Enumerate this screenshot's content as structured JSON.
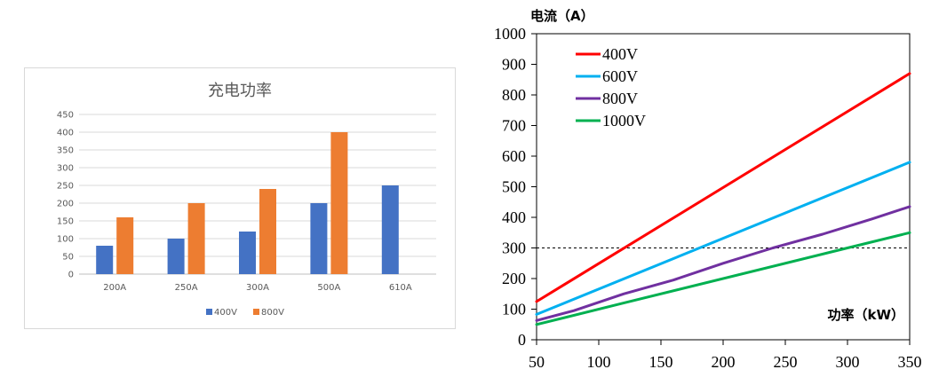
{
  "chart_data": [
    {
      "type": "bar",
      "title": "充电功率",
      "categories": [
        "200A",
        "250A",
        "300A",
        "500A",
        "610A"
      ],
      "series": [
        {
          "name": "400V",
          "color": "#4472c4",
          "values": [
            80,
            100,
            120,
            200,
            250
          ]
        },
        {
          "name": "800V",
          "color": "#ed7d31",
          "values": [
            160,
            200,
            240,
            400,
            null
          ]
        }
      ],
      "ylim": [
        0,
        450
      ],
      "yticks": [
        0,
        50,
        100,
        150,
        200,
        250,
        300,
        350,
        400,
        450
      ],
      "xlabel": "",
      "ylabel": "",
      "grid": true,
      "legend": "bottom"
    },
    {
      "type": "line",
      "xlabel": "功率（kW）",
      "ylabel": "电流（A）",
      "xlim": [
        50,
        350
      ],
      "ylim": [
        0,
        1000
      ],
      "xticks": [
        50,
        100,
        150,
        200,
        250,
        300,
        350
      ],
      "yticks": [
        0,
        100,
        200,
        300,
        400,
        500,
        600,
        700,
        800,
        900,
        1000
      ],
      "series": [
        {
          "name": "400V",
          "color": "#ff0000",
          "x": [
            50,
            350
          ],
          "y": [
            125,
            870
          ]
        },
        {
          "name": "600V",
          "color": "#00b0f0",
          "x": [
            50,
            350
          ],
          "y": [
            83,
            580
          ]
        },
        {
          "name": "800V",
          "color": "#7030a0",
          "x": [
            50,
            80,
            120,
            160,
            200,
            240,
            280,
            320,
            350
          ],
          "y": [
            63,
            95,
            150,
            195,
            250,
            300,
            345,
            395,
            435
          ]
        },
        {
          "name": "1000V",
          "color": "#00b050",
          "x": [
            50,
            120,
            300,
            350
          ],
          "y": [
            50,
            120,
            300,
            350
          ]
        }
      ],
      "reference_line": {
        "y": 300,
        "style": "dashed"
      },
      "legend": "top-left"
    }
  ]
}
